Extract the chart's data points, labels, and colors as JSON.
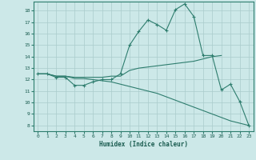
{
  "xlabel": "Humidex (Indice chaleur)",
  "bg_color": "#cce8e8",
  "grid_color": "#aacccc",
  "line_color": "#2e7d6e",
  "xlim": [
    -0.5,
    23.5
  ],
  "ylim": [
    7.5,
    18.8
  ],
  "yticks": [
    8,
    9,
    10,
    11,
    12,
    13,
    14,
    15,
    16,
    17,
    18
  ],
  "xticks": [
    0,
    1,
    2,
    3,
    4,
    5,
    6,
    7,
    8,
    9,
    10,
    11,
    12,
    13,
    14,
    15,
    16,
    17,
    18,
    19,
    20,
    21,
    22,
    23
  ],
  "curve1_x": [
    0,
    1,
    2,
    3,
    4,
    5,
    6,
    7,
    8,
    9,
    10,
    11,
    12,
    13,
    14,
    15,
    16,
    17,
    18,
    19,
    20,
    21,
    22,
    23
  ],
  "curve1_y": [
    12.5,
    12.5,
    12.2,
    12.2,
    11.5,
    11.5,
    11.8,
    12.0,
    12.0,
    12.5,
    15.0,
    16.2,
    17.2,
    16.8,
    16.3,
    18.1,
    18.6,
    17.5,
    14.1,
    14.1,
    11.1,
    11.6,
    10.1,
    8.0
  ],
  "curve2_x": [
    0,
    1,
    2,
    3,
    4,
    5,
    6,
    7,
    8,
    9,
    10,
    11,
    12,
    13,
    14,
    15,
    16,
    17,
    18,
    19,
    20
  ],
  "curve2_y": [
    12.5,
    12.5,
    12.3,
    12.3,
    12.2,
    12.2,
    12.2,
    12.2,
    12.3,
    12.3,
    12.8,
    13.0,
    13.1,
    13.2,
    13.3,
    13.4,
    13.5,
    13.6,
    13.8,
    14.0,
    14.1
  ],
  "curve3_x": [
    0,
    1,
    2,
    3,
    4,
    5,
    6,
    7,
    8,
    9,
    10,
    11,
    12,
    13,
    14,
    15,
    16,
    17,
    18,
    19,
    20,
    21,
    22,
    23
  ],
  "curve3_y": [
    12.5,
    12.5,
    12.3,
    12.3,
    12.1,
    12.1,
    12.0,
    11.9,
    11.8,
    11.6,
    11.4,
    11.2,
    11.0,
    10.8,
    10.5,
    10.2,
    9.9,
    9.6,
    9.3,
    9.0,
    8.7,
    8.4,
    8.2,
    8.0
  ]
}
